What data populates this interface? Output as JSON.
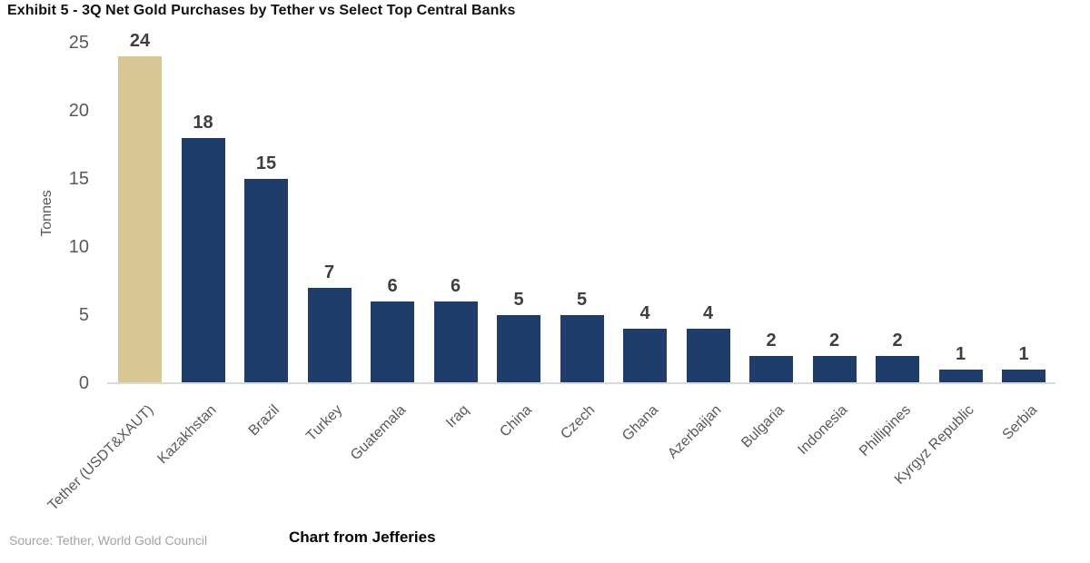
{
  "title": "Exhibit 5 - 3Q Net Gold Purchases by Tether vs Select Top Central Banks",
  "chart_data": {
    "type": "bar",
    "title": "Exhibit 5 - 3Q Net Gold Purchases by Tether vs Select Top Central Banks",
    "ylabel": "Tonnes",
    "ylim": [
      0,
      25
    ],
    "yticks": [
      0,
      5,
      10,
      15,
      20,
      25
    ],
    "grid": false,
    "legend": "none",
    "categories": [
      "Tether (USDT&XAUT)",
      "Kazakhstan",
      "Brazil",
      "Turkey",
      "Guatemala",
      "Iraq",
      "China",
      "Czech",
      "Ghana",
      "Azerbaijan",
      "Bulgaria",
      "Indonesia",
      "Phillipines",
      "Kyrgyz Republic",
      "Serbia"
    ],
    "values": [
      24,
      18,
      15,
      7,
      6,
      6,
      5,
      5,
      4,
      4,
      2,
      2,
      2,
      1,
      1
    ],
    "highlight_index": 0,
    "colors": {
      "highlight_bar": "#d8c795",
      "default_bar": "#1e3d6b",
      "value_label": "#3f3f3f",
      "axis_text": "#595959",
      "axis_line": "#d9d9d9"
    }
  },
  "footer": {
    "source": "Source: Tether, World Gold Council",
    "caption": "Chart from Jefferies"
  }
}
